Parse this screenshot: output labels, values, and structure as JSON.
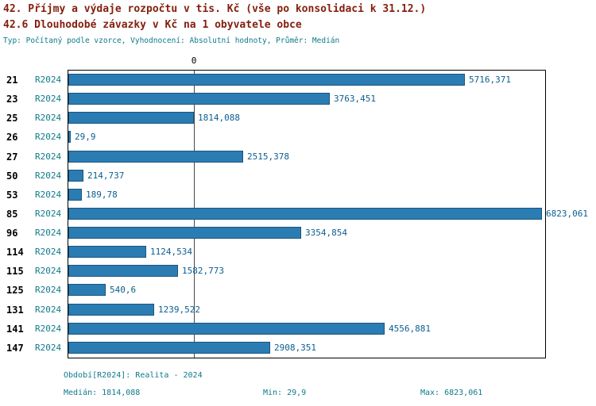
{
  "header": {
    "title1": "42. Příjmy a výdaje rozpočtu v tis. Kč (vše po konsolidaci k 31.12.)",
    "title2": "42.6 Dlouhodobé závazky v Kč na 1 obyvatele obce",
    "meta": "Typ: Počítaný podle vzorce, Vyhodnocení: Absolutní hodnoty, Průměr: Medián"
  },
  "chart_data": {
    "type": "bar",
    "orientation": "horizontal",
    "title": "42.6 Dlouhodobé závazky v Kč na 1 obyvatele obce",
    "axis_top_tick": "0",
    "categories": [
      "21",
      "23",
      "25",
      "26",
      "27",
      "50",
      "53",
      "85",
      "96",
      "114",
      "115",
      "125",
      "131",
      "141",
      "147"
    ],
    "series_label": "R2024",
    "values": [
      5716.371,
      3763.451,
      1814.088,
      29.9,
      2515.378,
      214.737,
      189.78,
      6823.061,
      3354.854,
      1124.534,
      1582.773,
      540.6,
      1239.522,
      4556.881,
      2908.351
    ],
    "value_labels": [
      "5716,371",
      "3763,451",
      "1814,088",
      "29,9",
      "2515,378",
      "214,737",
      "189,78",
      "6823,061",
      "3354,854",
      "1124,534",
      "1582,773",
      "540,6",
      "1239,522",
      "4556,881",
      "2908,351"
    ],
    "xlim": [
      0,
      6870
    ],
    "median": 1814.088,
    "min": 29.9,
    "max": 6823.061,
    "grid": "median-line-only",
    "legend_position": "none"
  },
  "footer": {
    "period": "Období[R2024]: Realita - 2024",
    "median": "Medián: 1814,088",
    "min": "Min: 29,9",
    "max": "Max: 6823,061"
  },
  "colors": {
    "title": "#841e0e",
    "teal": "#0e7a8b",
    "valtext": "#0b5d8f",
    "bar-fill": "#2b7cb3",
    "bar-border": "#1a567e",
    "line": "#4a4a4a"
  }
}
